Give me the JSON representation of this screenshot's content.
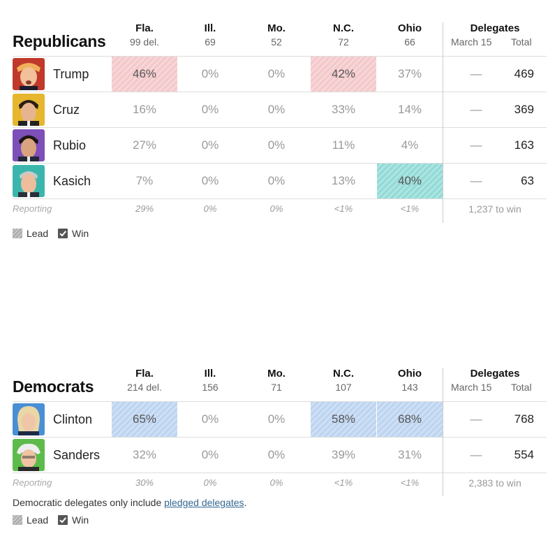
{
  "republicans": {
    "title": "Republicans",
    "states": [
      {
        "name": "Fla.",
        "delegates": "99 del."
      },
      {
        "name": "Ill.",
        "delegates": "69"
      },
      {
        "name": "Mo.",
        "delegates": "52"
      },
      {
        "name": "N.C.",
        "delegates": "72"
      },
      {
        "name": "Ohio",
        "delegates": "66"
      }
    ],
    "delegates_header": "Delegates",
    "march_label": "March 15",
    "total_label": "Total",
    "candidates": [
      {
        "name": "Trump",
        "results": [
          "46%",
          "0%",
          "0%",
          "42%",
          "37%"
        ],
        "march": "—",
        "total": "469"
      },
      {
        "name": "Cruz",
        "results": [
          "16%",
          "0%",
          "0%",
          "33%",
          "14%"
        ],
        "march": "—",
        "total": "369"
      },
      {
        "name": "Rubio",
        "results": [
          "27%",
          "0%",
          "0%",
          "11%",
          "4%"
        ],
        "march": "—",
        "total": "163"
      },
      {
        "name": "Kasich",
        "results": [
          "7%",
          "0%",
          "0%",
          "13%",
          "40%"
        ],
        "march": "—",
        "total": "63"
      }
    ],
    "reporting_label": "Reporting",
    "reporting": [
      "29%",
      "0%",
      "0%",
      "<1%",
      "<1%"
    ],
    "to_win": "1,237 to win",
    "leader_colors": {
      "Trump": "#f4c8ca",
      "Kasich": "#92dad6"
    }
  },
  "democrats": {
    "title": "Democrats",
    "states": [
      {
        "name": "Fla.",
        "delegates": "214 del."
      },
      {
        "name": "Ill.",
        "delegates": "156"
      },
      {
        "name": "Mo.",
        "delegates": "71"
      },
      {
        "name": "N.C.",
        "delegates": "107"
      },
      {
        "name": "Ohio",
        "delegates": "143"
      }
    ],
    "delegates_header": "Delegates",
    "march_label": "March 15",
    "total_label": "Total",
    "candidates": [
      {
        "name": "Clinton",
        "results": [
          "65%",
          "0%",
          "0%",
          "58%",
          "68%"
        ],
        "march": "—",
        "total": "768"
      },
      {
        "name": "Sanders",
        "results": [
          "32%",
          "0%",
          "0%",
          "39%",
          "31%"
        ],
        "march": "—",
        "total": "554"
      }
    ],
    "reporting_label": "Reporting",
    "reporting": [
      "30%",
      "0%",
      "0%",
      "<1%",
      "<1%"
    ],
    "to_win": "2,383 to win",
    "note_prefix": "Democratic delegates only include ",
    "note_link": "pledged delegates",
    "note_suffix": ".",
    "leader_colors": {
      "Clinton": "#bcd4f0"
    }
  },
  "legend": {
    "lead": "Lead",
    "win": "Win"
  }
}
